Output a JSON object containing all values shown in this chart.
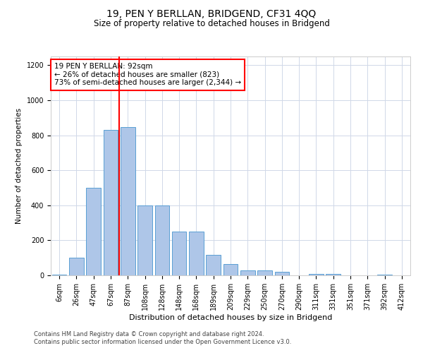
{
  "title": "19, PEN Y BERLLAN, BRIDGEND, CF31 4QQ",
  "subtitle": "Size of property relative to detached houses in Bridgend",
  "xlabel": "Distribution of detached houses by size in Bridgend",
  "ylabel": "Number of detached properties",
  "categories": [
    "6sqm",
    "26sqm",
    "47sqm",
    "67sqm",
    "87sqm",
    "108sqm",
    "128sqm",
    "148sqm",
    "168sqm",
    "189sqm",
    "209sqm",
    "229sqm",
    "250sqm",
    "270sqm",
    "290sqm",
    "311sqm",
    "331sqm",
    "351sqm",
    "371sqm",
    "392sqm",
    "412sqm"
  ],
  "values": [
    5,
    100,
    500,
    830,
    845,
    400,
    400,
    250,
    250,
    115,
    65,
    30,
    30,
    20,
    0,
    10,
    10,
    0,
    0,
    5,
    0
  ],
  "bar_color": "#aec6e8",
  "bar_edge_color": "#5a9fd4",
  "vline_index": 4,
  "vline_color": "red",
  "annotation_text": "19 PEN Y BERLLAN: 92sqm\n← 26% of detached houses are smaller (823)\n73% of semi-detached houses are larger (2,344) →",
  "annotation_box_color": "white",
  "annotation_box_edge_color": "red",
  "ylim": [
    0,
    1250
  ],
  "yticks": [
    0,
    200,
    400,
    600,
    800,
    1000,
    1200
  ],
  "footer_line1": "Contains HM Land Registry data © Crown copyright and database right 2024.",
  "footer_line2": "Contains public sector information licensed under the Open Government Licence v3.0.",
  "bg_color": "white",
  "grid_color": "#d0d8e8",
  "title_fontsize": 10,
  "subtitle_fontsize": 8.5,
  "xlabel_fontsize": 8,
  "ylabel_fontsize": 7.5,
  "tick_fontsize": 7,
  "footer_fontsize": 6,
  "annotation_fontsize": 7.5
}
